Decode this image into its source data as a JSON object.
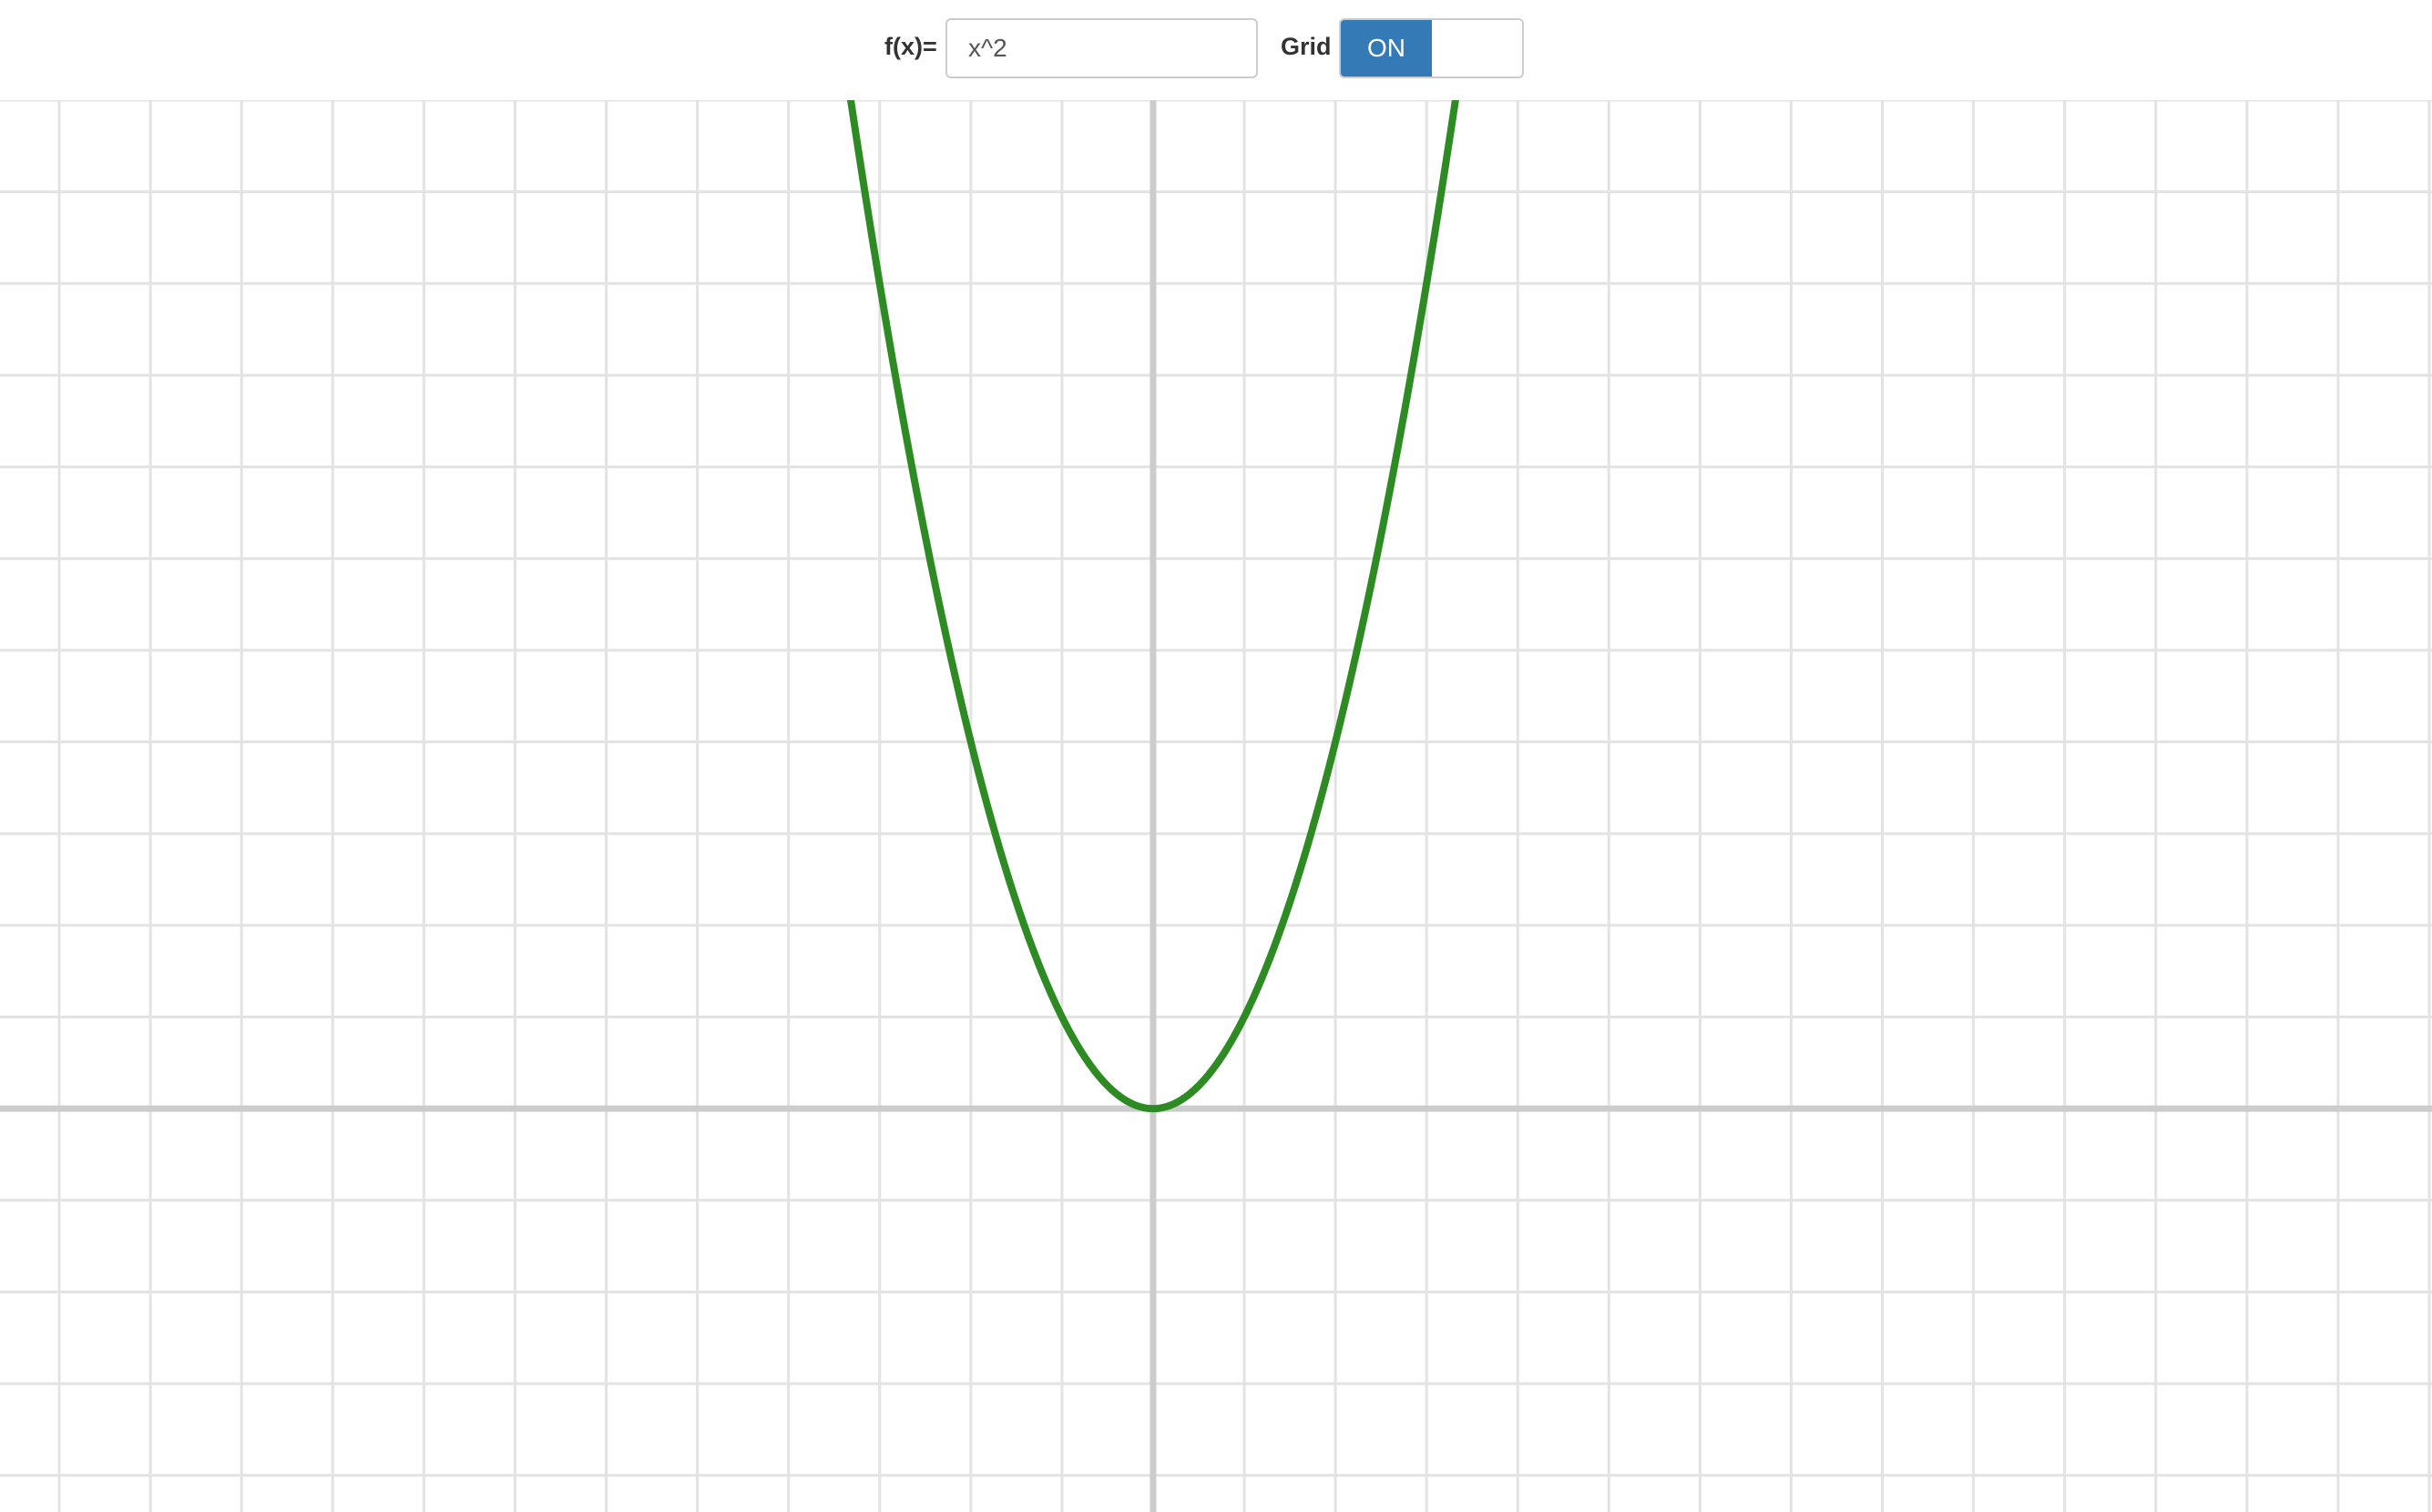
{
  "toolbar": {
    "function_label": "f(x)=",
    "function_value": "x^2",
    "grid_label": "Grid",
    "grid_toggle_on_label": "ON",
    "grid_enabled": true
  },
  "colors": {
    "curve": "#2e8b24",
    "grid": "#e3e3e3",
    "axis": "#cccccc",
    "toggle_active": "#337ab7"
  },
  "chart_data": {
    "type": "line",
    "function": "x^2",
    "grid": true,
    "xlim": [
      -12.65,
      14.03
    ],
    "ylim": [
      -4.4,
      11.0
    ],
    "series": [
      {
        "x": [
          -3.3,
          -3,
          -2.5,
          -2,
          -1.5,
          -1,
          -0.5,
          0,
          0.5,
          1,
          1.5,
          2,
          2.5,
          3,
          3.3
        ],
        "y": [
          10.89,
          9,
          6.25,
          4,
          2.25,
          1,
          0.25,
          0,
          0.25,
          1,
          2.25,
          4,
          6.25,
          9,
          10.89
        ]
      }
    ]
  }
}
